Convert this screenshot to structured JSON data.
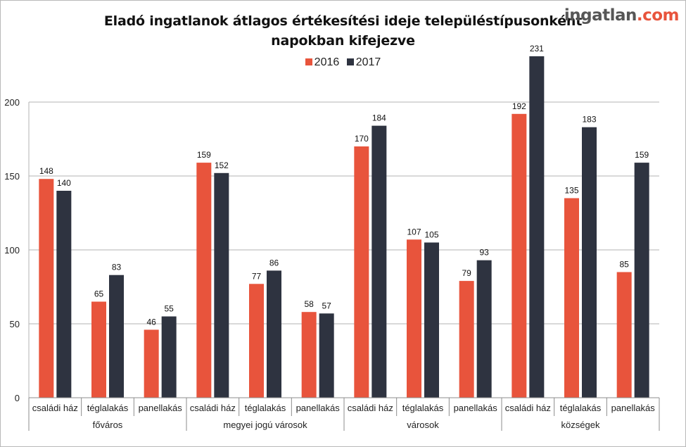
{
  "brand": {
    "name_main": "ingatlan",
    "name_ext": ".com"
  },
  "colors": {
    "series_2016": "#e8543c",
    "series_2017": "#2e3340",
    "grid": "#b3b3b3",
    "axis_text": "#222222"
  },
  "chart_data": {
    "type": "bar",
    "title_line1": "Eladó ingatlanok átlagos értékesítési ideje településtípusonként",
    "title_line2": "napokban kifejezve",
    "xlabel": "",
    "ylabel": "",
    "ylim": [
      0,
      231
    ],
    "yticks": [
      0,
      50,
      100,
      150,
      200
    ],
    "grid": true,
    "legend_position": "top-center",
    "groups": [
      "főváros",
      "megyei jogú városok",
      "városok",
      "községek"
    ],
    "categories": [
      "családi ház",
      "téglalakás",
      "panellakás",
      "családi ház",
      "téglalakás",
      "panellakás",
      "családi ház",
      "téglalakás",
      "panellakás",
      "családi ház",
      "téglalakás",
      "panellakás"
    ],
    "series": [
      {
        "name": "2016",
        "values": [
          148,
          65,
          46,
          159,
          77,
          58,
          170,
          107,
          79,
          192,
          135,
          85
        ]
      },
      {
        "name": "2017",
        "values": [
          140,
          83,
          55,
          152,
          86,
          57,
          184,
          105,
          93,
          231,
          183,
          159
        ]
      }
    ]
  }
}
